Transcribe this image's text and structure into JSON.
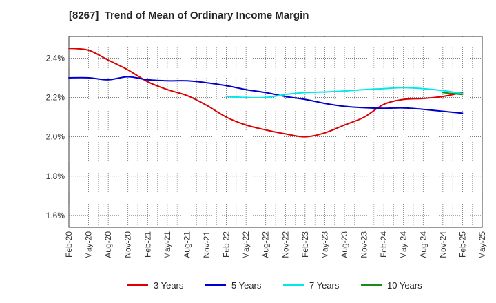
{
  "chart_data": {
    "type": "line",
    "title": "[8267]  Trend of Mean of Ordinary Income Margin",
    "xlabel": "",
    "ylabel": "",
    "x_tick_labels": [
      "Feb-20",
      "May-20",
      "Aug-20",
      "Nov-20",
      "Feb-21",
      "May-21",
      "Aug-21",
      "Nov-21",
      "Feb-22",
      "May-22",
      "Aug-22",
      "Nov-22",
      "Feb-23",
      "May-23",
      "Aug-23",
      "Nov-23",
      "Feb-24",
      "May-24",
      "Aug-24",
      "Nov-24",
      "Feb-25",
      "May-25"
    ],
    "y_ticks": [
      1.6,
      1.8,
      2.0,
      2.2,
      2.4
    ],
    "y_tick_labels": [
      "1.6%",
      "1.8%",
      "2.0%",
      "2.2%",
      "2.4%"
    ],
    "ylim": [
      1.54,
      2.51
    ],
    "grid": true,
    "legend_position": "bottom",
    "series": [
      {
        "name": "3 Years",
        "color": "#dd0000",
        "x": [
          "Feb-20",
          "May-20",
          "Aug-20",
          "Nov-20",
          "Feb-21",
          "May-21",
          "Aug-21",
          "Nov-21",
          "Feb-22",
          "May-22",
          "Aug-22",
          "Nov-22",
          "Feb-23",
          "May-23",
          "Aug-23",
          "Nov-23",
          "Feb-24",
          "May-24",
          "Aug-24",
          "Nov-24",
          "Feb-25"
        ],
        "values": [
          2.45,
          2.44,
          2.39,
          2.34,
          2.28,
          2.24,
          2.21,
          2.16,
          2.1,
          2.06,
          2.035,
          2.015,
          2.0,
          2.02,
          2.06,
          2.1,
          2.165,
          2.19,
          2.195,
          2.205,
          2.225
        ]
      },
      {
        "name": "5 Years",
        "color": "#0000cc",
        "x": [
          "Feb-20",
          "May-20",
          "Aug-20",
          "Nov-20",
          "Feb-21",
          "May-21",
          "Aug-21",
          "Nov-21",
          "Feb-22",
          "May-22",
          "Aug-22",
          "Nov-22",
          "Feb-23",
          "May-23",
          "Aug-23",
          "Nov-23",
          "Feb-24",
          "May-24",
          "Aug-24",
          "Nov-24",
          "Feb-25"
        ],
        "values": [
          2.3,
          2.3,
          2.29,
          2.305,
          2.29,
          2.285,
          2.285,
          2.275,
          2.26,
          2.24,
          2.225,
          2.205,
          2.19,
          2.17,
          2.155,
          2.148,
          2.145,
          2.147,
          2.14,
          2.13,
          2.12
        ]
      },
      {
        "name": "7 Years",
        "color": "#00e8e8",
        "x": [
          "Feb-22",
          "May-22",
          "Aug-22",
          "Nov-22",
          "Feb-23",
          "May-23",
          "Aug-23",
          "Nov-23",
          "Feb-24",
          "May-24",
          "Aug-24",
          "Nov-24",
          "Feb-25"
        ],
        "values": [
          2.205,
          2.2,
          2.2,
          2.215,
          2.225,
          2.228,
          2.233,
          2.24,
          2.245,
          2.25,
          2.245,
          2.235,
          2.22
        ]
      },
      {
        "name": "10 Years",
        "color": "#1a8a1a",
        "x": [
          "Nov-24",
          "Feb-25"
        ],
        "values": [
          2.225,
          2.215
        ]
      }
    ]
  }
}
